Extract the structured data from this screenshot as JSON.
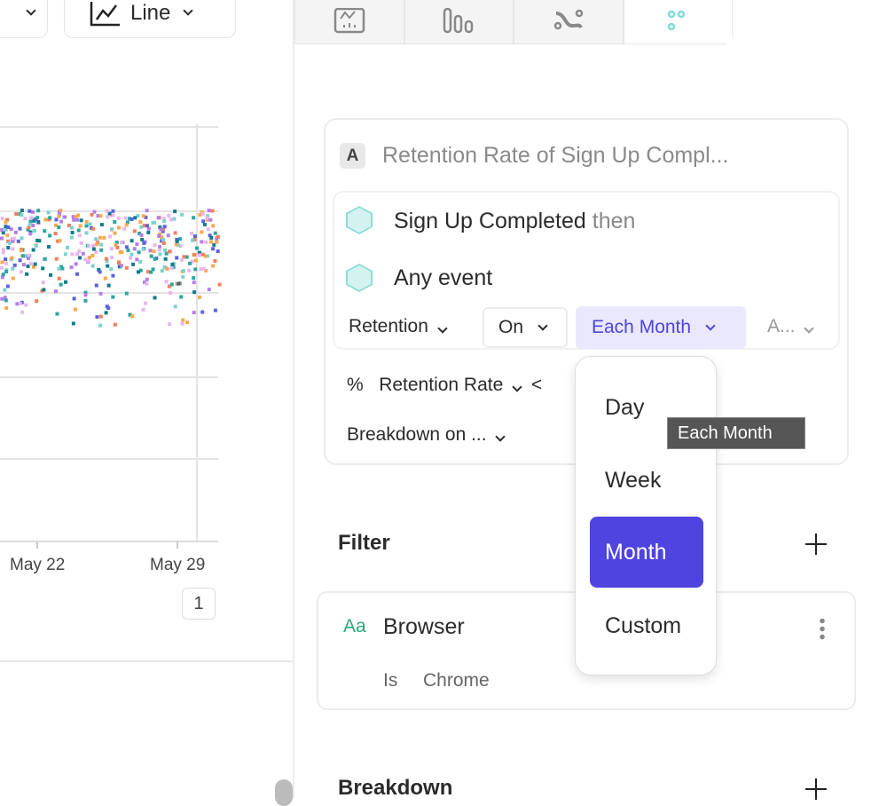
{
  "toolbar": {
    "chart_type_label": "Line"
  },
  "chart": {
    "x_ticks": [
      "May 22",
      "May 29"
    ],
    "page_number": "1",
    "colors": [
      "#7ad3d0",
      "#f9a94b",
      "#b57ee8",
      "#117a8b",
      "#f47f5c",
      "#5b63e0",
      "#e8b6f0",
      "#2ba6a0"
    ]
  },
  "panel": {
    "metric_letter": "A",
    "metric_title": "Retention Rate of Sign Up Compl...",
    "events": [
      {
        "name": "Sign Up Completed",
        "suffix": "then"
      },
      {
        "name": "Any event"
      }
    ],
    "retention_label": "Retention",
    "on_label": "On",
    "period_label": "Each Month",
    "truncated_label": "A...",
    "rate_symbol": "%",
    "rate_label": "Retention Rate",
    "rate_extra": "<",
    "breakdown_on_label": "Breakdown on ...",
    "accent": "#4f44e0"
  },
  "dropdown": {
    "options": [
      "Day",
      "Week",
      "Month",
      "Custom"
    ],
    "selected": "Month",
    "tooltip": "Each Month"
  },
  "filter": {
    "title": "Filter",
    "property_type": "Aa",
    "property": "Browser",
    "operator": "Is",
    "value": "Chrome"
  },
  "breakdown": {
    "title": "Breakdown"
  }
}
